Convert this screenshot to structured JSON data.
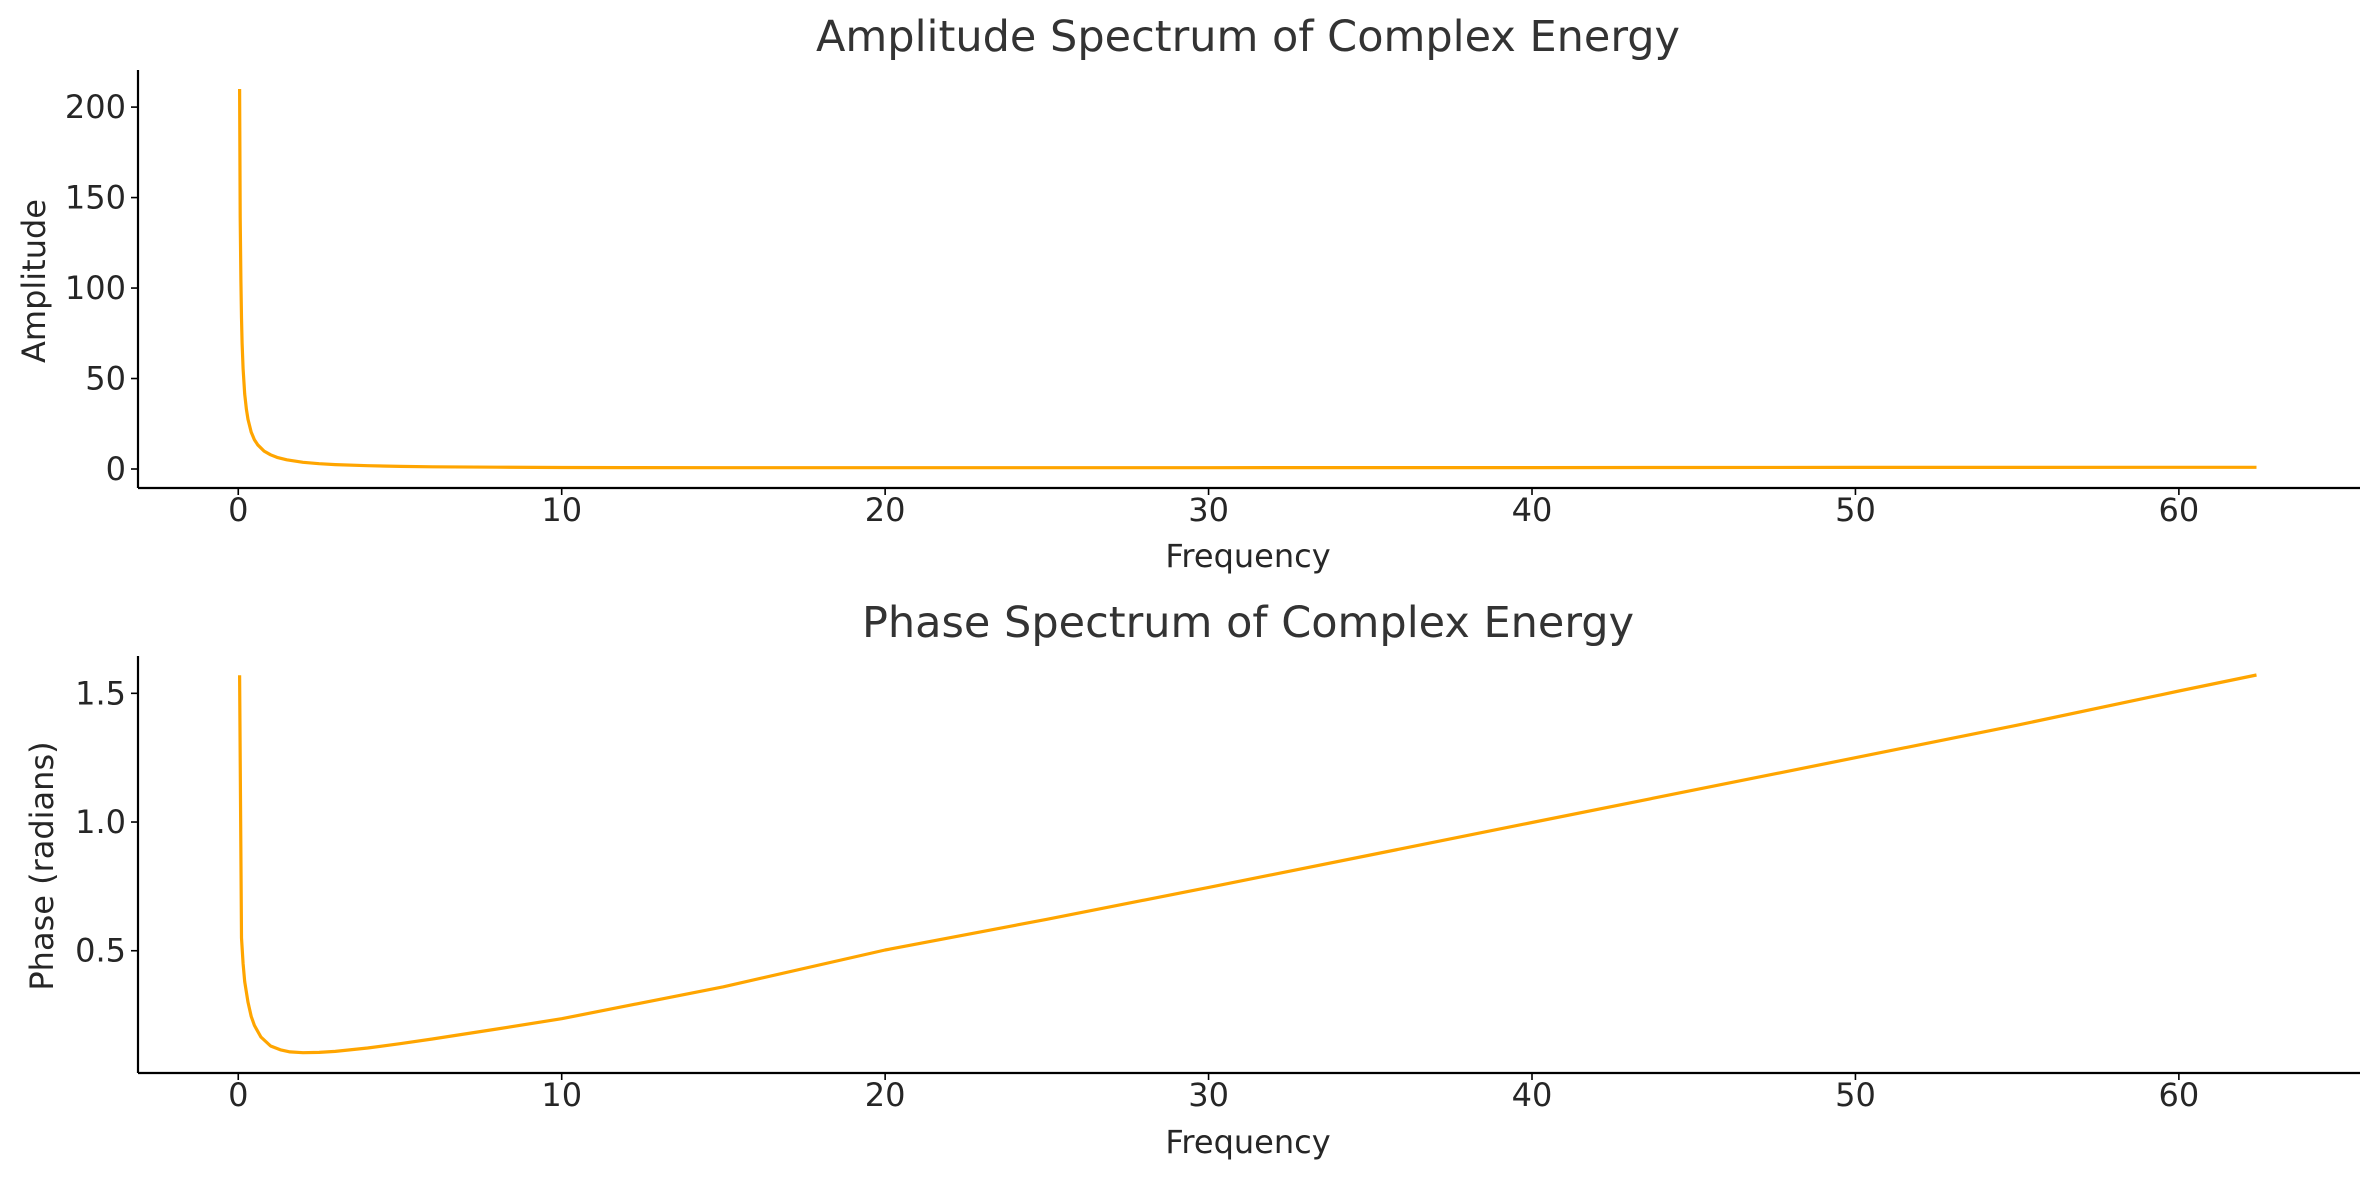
{
  "chart_data": [
    {
      "type": "line",
      "title": "Amplitude Spectrum of Complex Energy",
      "xlabel": "Frequency",
      "ylabel": "Amplitude",
      "xlim": [
        -3.1,
        65.6
      ],
      "ylim": [
        -10.5,
        220.5
      ],
      "xticks": [
        0,
        10,
        20,
        30,
        40,
        50,
        60
      ],
      "yticks": [
        0,
        50,
        100,
        150,
        200
      ],
      "xtick_labels": [
        "0",
        "10",
        "20",
        "30",
        "40",
        "50",
        "60"
      ],
      "ytick_labels": [
        "0",
        "50",
        "100",
        "150",
        "200"
      ],
      "grid": false,
      "color": "#ffa500",
      "series": [
        {
          "x": [
            0.04,
            0.06,
            0.08,
            0.1,
            0.12,
            0.15,
            0.2,
            0.25,
            0.3,
            0.4,
            0.5,
            0.6,
            0.8,
            1.0,
            1.2,
            1.5,
            2.0,
            2.5,
            3,
            4,
            5,
            6,
            8,
            10,
            12,
            15,
            20,
            25,
            30,
            35,
            40,
            45,
            50,
            55,
            60,
            62.4
          ],
          "y": [
            210,
            139,
            104,
            83.5,
            69.5,
            55.4,
            41.4,
            33,
            27.4,
            20.4,
            16.2,
            13.4,
            9.9,
            7.82,
            6.43,
            5.06,
            3.72,
            2.94,
            2.44,
            1.81,
            1.46,
            1.24,
            0.98,
            0.85,
            0.78,
            0.73,
            0.71,
            0.72,
            0.74,
            0.76,
            0.79,
            0.82,
            0.86,
            0.89,
            0.92,
            0.94
          ]
        }
      ]
    },
    {
      "type": "line",
      "title": "Phase Spectrum of Complex Energy",
      "xlabel": "Frequency",
      "ylabel": "Phase (radians)",
      "xlim": [
        -3.1,
        65.6
      ],
      "ylim": [
        0.025,
        1.645
      ],
      "xticks": [
        0,
        10,
        20,
        30,
        40,
        50,
        60
      ],
      "yticks": [
        0.5,
        1.0,
        1.5
      ],
      "xtick_labels": [
        "0",
        "10",
        "20",
        "30",
        "40",
        "50",
        "60"
      ],
      "ytick_labels": [
        "0.5",
        "1.0",
        "1.5"
      ],
      "grid": false,
      "color": "#ffa500",
      "series": [
        {
          "x": [
            0.04,
            0.1,
            0.15,
            0.2,
            0.3,
            0.4,
            0.5,
            0.7,
            1.0,
            1.3,
            1.6,
            2.0,
            2.5,
            3,
            4,
            5,
            6,
            8,
            10,
            15,
            20,
            25,
            30,
            35,
            40,
            45,
            50,
            55,
            60,
            62.4
          ],
          "y": [
            1.57,
            0.55,
            0.45,
            0.38,
            0.3,
            0.245,
            0.21,
            0.165,
            0.13,
            0.115,
            0.107,
            0.104,
            0.105,
            0.109,
            0.122,
            0.139,
            0.157,
            0.196,
            0.236,
            0.36,
            0.503,
            0.622,
            0.746,
            0.872,
            0.998,
            1.124,
            1.25,
            1.376,
            1.509,
            1.571
          ]
        }
      ]
    }
  ]
}
